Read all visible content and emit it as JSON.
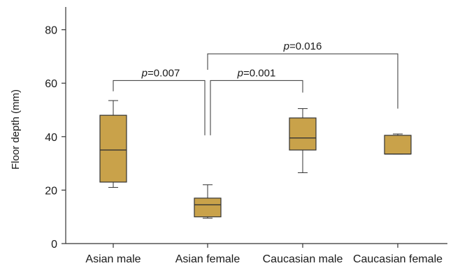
{
  "chart_data": {
    "type": "box",
    "ylabel": "Floor depth (mm)",
    "xlabel": "",
    "ylim": [
      0,
      88
    ],
    "yticks": [
      0,
      20,
      40,
      60,
      80
    ],
    "grid": false,
    "box_color": "#c9a24a",
    "line_color": "#333333",
    "categories": [
      "Asian male",
      "Asian female",
      "Caucasian male",
      "Caucasian female"
    ],
    "boxes": [
      {
        "category": "Asian male",
        "whisker_low": 21,
        "q1": 23,
        "median": 35,
        "q3": 48,
        "whisker_high": 53.5
      },
      {
        "category": "Asian female",
        "whisker_low": 9.5,
        "q1": 10,
        "median": 14.5,
        "q3": 17,
        "whisker_high": 22
      },
      {
        "category": "Caucasian male",
        "whisker_low": 26.5,
        "q1": 35,
        "median": 39.5,
        "q3": 47,
        "whisker_high": 50.5
      },
      {
        "category": "Caucasian female",
        "whisker_low": 33.5,
        "q1": 33.5,
        "median": 33.5,
        "q3": 40.5,
        "whisker_high": 41
      }
    ],
    "comparisons": [
      {
        "from": "Asian male",
        "to": "Asian female",
        "p_symbol": "p",
        "p_value": "=0.007"
      },
      {
        "from": "Asian female",
        "to": "Caucasian male",
        "p_symbol": "p",
        "p_value": "=0.001"
      },
      {
        "from": "Asian female",
        "to": "Caucasian female",
        "p_symbol": "p",
        "p_value": "=0.016"
      }
    ]
  }
}
